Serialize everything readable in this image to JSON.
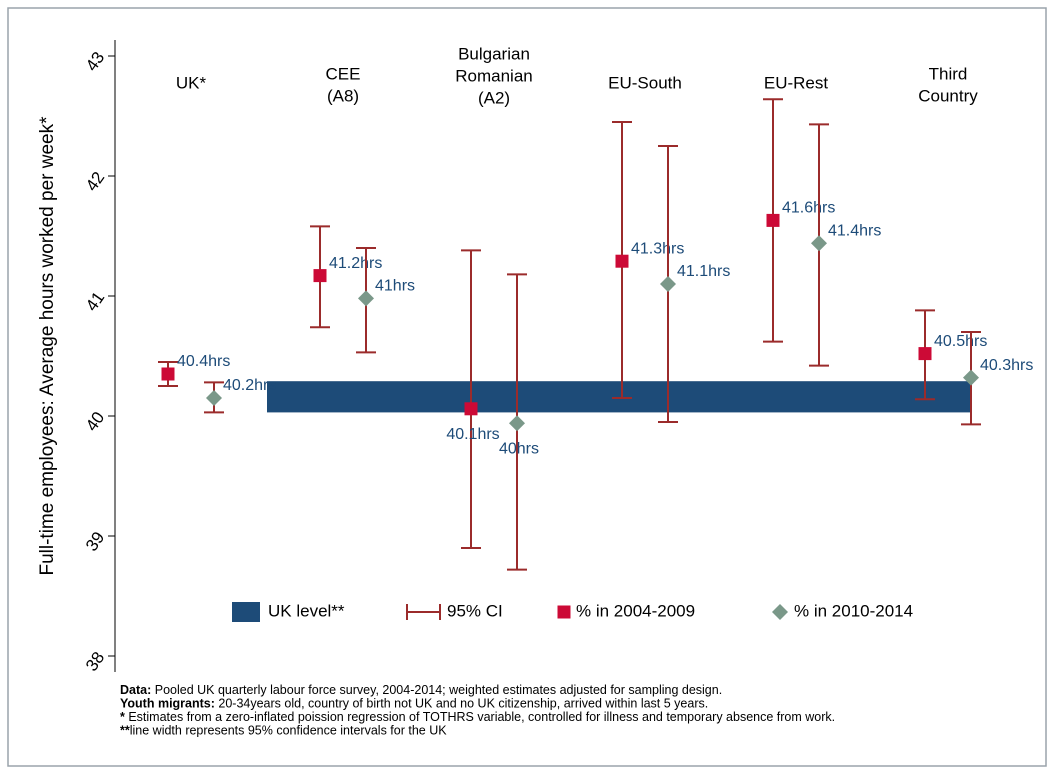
{
  "chart_data": {
    "type": "errorbar",
    "ylabel": "Full-time employees: Average hours worked per week*",
    "categories": [
      [
        "UK*"
      ],
      [
        "CEE",
        "(A8)"
      ],
      [
        "Bulgarian",
        "Romanian",
        "(A2)"
      ],
      [
        "EU-South"
      ],
      [
        "EU-Rest"
      ],
      [
        "Third",
        "Country"
      ]
    ],
    "ylim": [
      38,
      43
    ],
    "yticks": [
      38,
      39,
      40,
      41,
      42,
      43
    ],
    "uk_level": {
      "name": "UK level**",
      "color": "#1d4b78",
      "lower": 40.03,
      "upper": 40.29
    },
    "ci_name": "95% CI",
    "ci_color": "#9b2b2b",
    "series": [
      {
        "name": "% in 2004-2009",
        "color": "#cc0a36",
        "marker": "square",
        "values": [
          40.35,
          41.17,
          40.06,
          41.29,
          41.63,
          40.52
        ],
        "value_labels": [
          "40.4hrs",
          "41.2hrs",
          "40.1hrs",
          "41.3hrs",
          "41.6hrs",
          "40.5hrs"
        ],
        "ci_lower": [
          40.25,
          40.74,
          38.9,
          40.15,
          40.62,
          40.14
        ],
        "ci_upper": [
          40.45,
          41.58,
          41.38,
          42.45,
          42.64,
          40.88
        ]
      },
      {
        "name": "% in 2010-2014",
        "color": "#7a9889",
        "marker": "diamond",
        "values": [
          40.15,
          40.98,
          39.94,
          41.1,
          41.44,
          40.32
        ],
        "value_labels": [
          "40.2hrs",
          "41hrs",
          "40hrs",
          "41.1hrs",
          "41.4hrs",
          "40.3hrs"
        ],
        "ci_lower": [
          40.03,
          40.53,
          38.72,
          39.95,
          40.42,
          39.93
        ],
        "ci_upper": [
          40.28,
          41.4,
          41.18,
          42.25,
          42.43,
          40.7
        ]
      }
    ],
    "notes": [
      {
        "bold": "Data:",
        "text": " Pooled UK quarterly labour force survey, 2004-2014; weighted estimates adjusted for sampling design."
      },
      {
        "bold": "Youth migrants:",
        "text": " 20-34years old, country of birth not UK and no UK citizenship, arrived within last 5 years."
      },
      {
        "bold": "*",
        "text": " Estimates from a zero-inflated poission regression of TOTHRS variable, controlled for illness and temporary absence from work."
      },
      {
        "bold": "**",
        "text": "line width represents 95% confidence intervals for the UK"
      }
    ]
  }
}
